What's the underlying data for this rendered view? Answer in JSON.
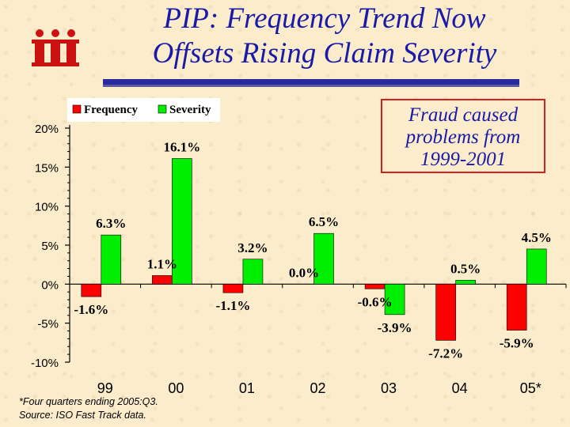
{
  "title_line1": "PIP: Frequency Trend  Now",
  "title_line2": "Offsets Rising Claim Severity",
  "logo_text": "iii",
  "callout_lines": [
    "Fraud caused",
    "problems from",
    "1999-2001"
  ],
  "footnote_line1": "*Four quarters ending 2005:Q3.",
  "footnote_line2": "Source: ISO Fast Track data.",
  "colors": {
    "frequency": "#ff0000",
    "severity": "#00ee00",
    "title": "#1a1aa8",
    "logo": "#cc1111"
  },
  "chart_data": {
    "type": "bar",
    "categories": [
      "99",
      "00",
      "01",
      "02",
      "03",
      "04",
      "05*"
    ],
    "series": [
      {
        "name": "Frequency",
        "values": [
          -1.6,
          1.1,
          -1.1,
          0.0,
          -0.6,
          -7.2,
          -5.9
        ],
        "labels": [
          "-1.6%",
          "1.1%",
          "-1.1%",
          "0.0%",
          "-0.6%",
          "-7.2%",
          "-5.9%"
        ]
      },
      {
        "name": "Severity",
        "values": [
          6.3,
          16.1,
          3.2,
          6.5,
          -3.9,
          0.5,
          4.5
        ],
        "labels": [
          "6.3%",
          "16.1%",
          "3.2%",
          "6.5%",
          "-3.9%",
          "0.5%",
          "4.5%"
        ]
      }
    ],
    "y_ticks": [
      20,
      15,
      10,
      5,
      0,
      -5,
      -10
    ],
    "y_tick_labels": [
      "20%",
      "15%",
      "10%",
      "5%",
      "0%",
      "-5%",
      "-10%"
    ],
    "ylim": [
      -10,
      20
    ],
    "legend_position": "top-left"
  }
}
